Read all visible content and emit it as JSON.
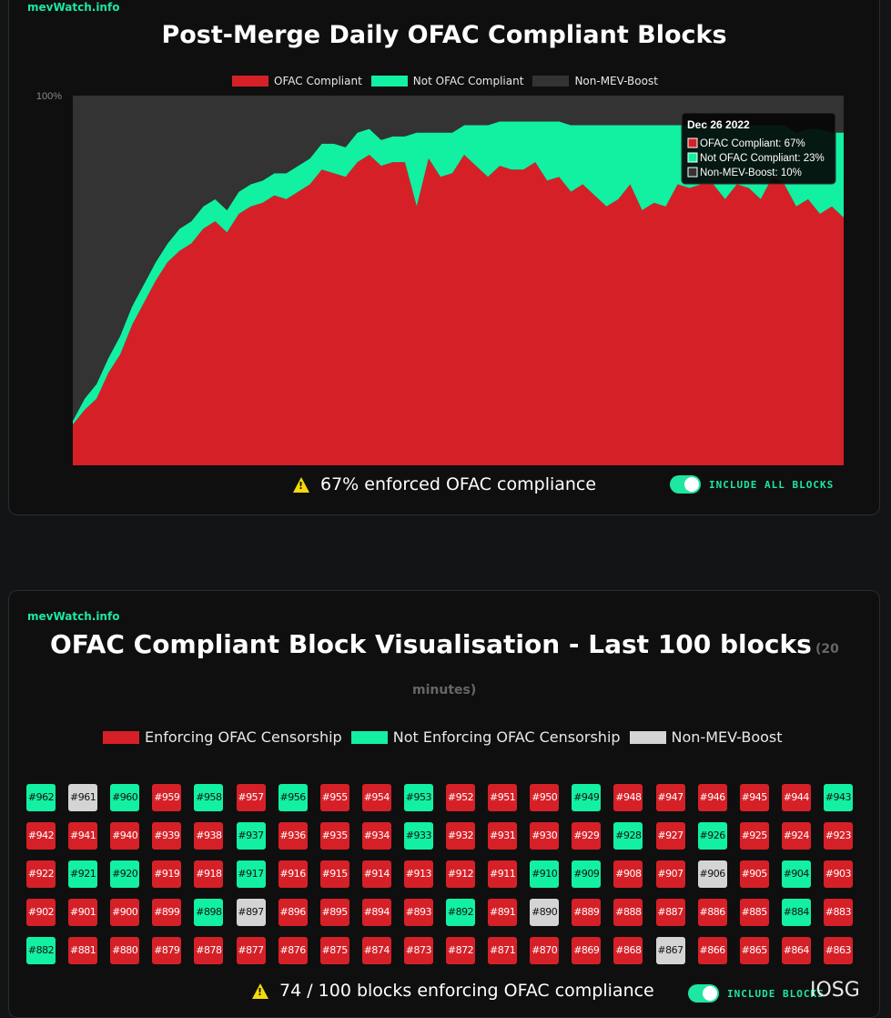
{
  "chart_panel": {
    "site": "mevWatch.info",
    "title": "Post-Merge Daily OFAC Compliant Blocks",
    "footer_text": "67% enforced OFAC compliance",
    "toggle_label": "INCLUDE ALL BLOCKS"
  },
  "chart_data": {
    "type": "area",
    "title": "Post-Merge Daily OFAC Compliant Blocks",
    "stacked": true,
    "y_tick_label": "100%",
    "ylim": [
      0,
      100
    ],
    "legend_position": "top-center",
    "grid": false,
    "series": [
      {
        "name": "OFAC Compliant",
        "color": "#d62027",
        "values": [
          11,
          15,
          18,
          25,
          30,
          38,
          44,
          50,
          55,
          58,
          60,
          64,
          66,
          63,
          68,
          70,
          71,
          73,
          72,
          74,
          76,
          80,
          79,
          78,
          82,
          84,
          81,
          82,
          82,
          70,
          83,
          78,
          79,
          84,
          81,
          78,
          81,
          80,
          80,
          82,
          77,
          78,
          74,
          76,
          73,
          70,
          72,
          76,
          69,
          71,
          70,
          76,
          75,
          76,
          76,
          72,
          76,
          75,
          72,
          78,
          76,
          70,
          72,
          68,
          70,
          67
        ]
      },
      {
        "name": "Not OFAC Compliant",
        "color": "#12f0a2",
        "values": [
          1,
          3,
          4,
          4,
          5,
          5,
          5,
          5,
          5,
          6,
          6,
          6,
          6,
          6,
          6,
          6,
          6,
          6,
          7,
          7,
          7,
          7,
          8,
          8,
          8,
          7,
          7,
          7,
          7,
          20,
          7,
          12,
          11,
          8,
          11,
          14,
          12,
          13,
          13,
          11,
          16,
          15,
          18,
          16,
          19,
          22,
          20,
          16,
          23,
          21,
          22,
          16,
          17,
          16,
          16,
          20,
          16,
          17,
          20,
          14,
          16,
          20,
          19,
          23,
          20,
          23
        ]
      },
      {
        "name": "Non-MEV-Boost",
        "color": "#333333",
        "values": [
          88,
          82,
          78,
          71,
          65,
          57,
          51,
          45,
          40,
          36,
          34,
          30,
          28,
          31,
          26,
          24,
          23,
          21,
          21,
          19,
          17,
          13,
          13,
          14,
          10,
          9,
          12,
          11,
          11,
          10,
          10,
          10,
          10,
          8,
          8,
          8,
          7,
          7,
          7,
          7,
          7,
          7,
          8,
          8,
          8,
          8,
          8,
          8,
          8,
          8,
          8,
          8,
          8,
          8,
          8,
          8,
          8,
          8,
          8,
          8,
          8,
          10,
          9,
          9,
          10,
          10
        ]
      }
    ],
    "tooltip": {
      "date": "Dec 26 2022",
      "lines": [
        "OFAC Compliant: 67%",
        "Not OFAC Compliant: 23%",
        "Non-MEV-Boost: 10%"
      ]
    }
  },
  "blocks_panel": {
    "site": "mevWatch.info",
    "title": "OFAC Compliant Block Visualisation - Last 100 blocks",
    "subtitle_part1": "(20",
    "subtitle_part2": "minutes)",
    "legend": [
      {
        "label": "Enforcing OFAC Censorship",
        "color": "#d62027"
      },
      {
        "label": "Not Enforcing OFAC Censorship",
        "color": "#12f0a2"
      },
      {
        "label": "Non-MEV-Boost",
        "color": "#d4d4d4"
      }
    ],
    "footer_text": "74 / 100 blocks enforcing OFAC compliance",
    "toggle_label": "INCLUDE BLOCKS",
    "watermark": "IOSG",
    "status_codes": {
      "r": "Enforcing OFAC Censorship",
      "g": "Not Enforcing OFAC Censorship",
      "w": "Non-MEV-Boost"
    },
    "rows": [
      {
        "labels": [
          "#962",
          "#961",
          "#960",
          "#959",
          "#958",
          "#957",
          "#956",
          "#955",
          "#954",
          "#953",
          "#952",
          "#951",
          "#950",
          "#949",
          "#948",
          "#947",
          "#946",
          "#945",
          "#944",
          "#943"
        ],
        "status": [
          "g",
          "w",
          "g",
          "r",
          "g",
          "r",
          "g",
          "r",
          "r",
          "g",
          "r",
          "r",
          "r",
          "g",
          "r",
          "r",
          "r",
          "r",
          "r",
          "g"
        ]
      },
      {
        "labels": [
          "#942",
          "#941",
          "#940",
          "#939",
          "#938",
          "#937",
          "#936",
          "#935",
          "#934",
          "#933",
          "#932",
          "#931",
          "#930",
          "#929",
          "#928",
          "#927",
          "#926",
          "#925",
          "#924",
          "#923"
        ],
        "status": [
          "r",
          "r",
          "r",
          "r",
          "r",
          "g",
          "r",
          "r",
          "r",
          "g",
          "r",
          "r",
          "r",
          "r",
          "g",
          "r",
          "g",
          "r",
          "r",
          "r"
        ]
      },
      {
        "labels": [
          "#922",
          "#921",
          "#920",
          "#919",
          "#918",
          "#917",
          "#916",
          "#915",
          "#914",
          "#913",
          "#912",
          "#911",
          "#910",
          "#909",
          "#908",
          "#907",
          "#906",
          "#905",
          "#904",
          "#903"
        ],
        "status": [
          "r",
          "g",
          "g",
          "r",
          "r",
          "g",
          "r",
          "r",
          "r",
          "r",
          "r",
          "r",
          "g",
          "g",
          "r",
          "r",
          "w",
          "r",
          "g",
          "r"
        ]
      },
      {
        "labels": [
          "#902",
          "#901",
          "#900",
          "#899",
          "#898",
          "#897",
          "#896",
          "#895",
          "#894",
          "#893",
          "#892",
          "#891",
          "#890",
          "#889",
          "#888",
          "#887",
          "#886",
          "#885",
          "#884",
          "#883"
        ],
        "status": [
          "r",
          "r",
          "r",
          "r",
          "g",
          "w",
          "r",
          "r",
          "r",
          "r",
          "g",
          "r",
          "w",
          "r",
          "r",
          "r",
          "r",
          "r",
          "g",
          "r"
        ]
      },
      {
        "labels": [
          "#882",
          "#881",
          "#880",
          "#879",
          "#878",
          "#877",
          "#876",
          "#875",
          "#874",
          "#873",
          "#872",
          "#871",
          "#870",
          "#869",
          "#868",
          "#867",
          "#866",
          "#865",
          "#864",
          "#863"
        ],
        "status": [
          "g",
          "r",
          "r",
          "r",
          "r",
          "r",
          "r",
          "r",
          "r",
          "r",
          "r",
          "r",
          "r",
          "r",
          "r",
          "w",
          "r",
          "r",
          "r",
          "r"
        ]
      }
    ]
  }
}
